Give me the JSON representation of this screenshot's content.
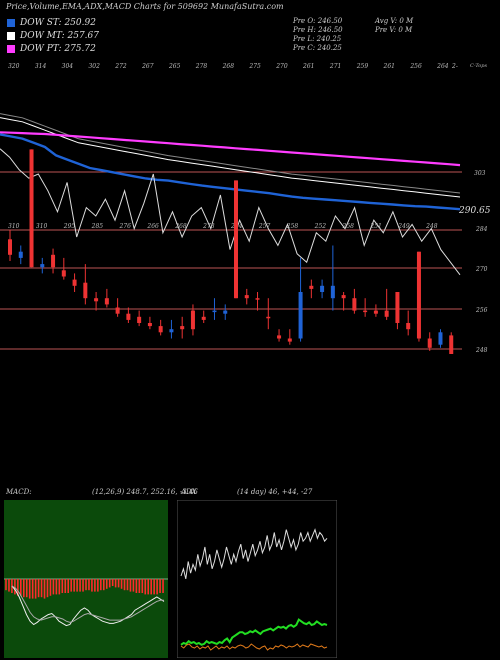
{
  "header": {
    "title": "Price,Volume,EMA,ADX,MACD Charts for 509692  MunafaSutra.com",
    "ema": [
      {
        "label": "DOW ST: 250.92",
        "color": "#1f63d6"
      },
      {
        "label": "DOW MT: 257.67",
        "color": "#ffffff"
      },
      {
        "label": "DOW PT: 275.72",
        "color": "#ff3cff"
      }
    ],
    "ohlc": [
      "Pre  O: 246.50",
      "Pre  H: 246.50",
      "Pre  L: 240.25",
      "Pre  C: 240.25"
    ],
    "volume": [
      "Avg V: 0  M",
      "Pre  V: 0  M"
    ]
  },
  "chart_data": [
    {
      "type": "line",
      "name": "price-ema",
      "x_tick_labels": [
        "320",
        "314",
        "304",
        "302",
        "272",
        "267",
        "265",
        "278",
        "268",
        "275",
        "270",
        "261",
        "271",
        "259",
        "261",
        "256",
        "264"
      ],
      "x_tick_labels_last": "2-",
      "x_label_right": "C-Tops",
      "y_labels": [
        "303",
        "290.65"
      ],
      "close_approx": [
        306,
        304,
        301,
        299,
        300,
        296,
        291,
        298,
        285,
        292,
        290,
        294,
        289,
        296,
        287,
        293,
        300,
        286,
        291,
        285,
        290,
        292,
        287,
        295,
        282,
        289,
        284,
        292,
        287,
        283,
        288,
        281,
        279,
        286,
        284,
        290,
        287,
        292,
        283,
        289,
        286,
        291,
        285,
        288,
        284,
        287,
        282,
        279,
        276
      ],
      "ema_st": [
        308,
        307.5,
        307,
        306,
        305,
        303,
        302,
        301,
        300,
        299.5,
        299,
        298.5,
        298,
        297.5,
        297.2,
        297,
        296.6,
        296.2,
        295.8,
        295.5,
        295.2,
        294.9,
        294.6,
        294.3,
        294,
        293.6,
        293.2,
        292.9,
        292.7,
        292.5,
        292.3,
        292.1,
        291.9,
        291.7,
        291.5,
        291.3,
        291.1,
        290.9,
        290.8,
        290.6,
        290.4,
        290.2
      ],
      "ema_mt": [
        312,
        311.5,
        311,
        310,
        309,
        308,
        307,
        306,
        305.5,
        305,
        304.5,
        304,
        303.5,
        303,
        302.5,
        302,
        301.6,
        301.2,
        300.8,
        300.4,
        300,
        299.6,
        299.2,
        298.8,
        298.4,
        298,
        297.6,
        297.3,
        297,
        296.7,
        296.4,
        296.1,
        295.8,
        295.5,
        295.2,
        294.9,
        294.6,
        294.3,
        294,
        293.7,
        293.4,
        293.1
      ],
      "ema_pt": [
        308.5,
        308.4,
        308.3,
        308.2,
        308.1,
        307.9,
        307.7,
        307.5,
        307.3,
        307.1,
        306.9,
        306.7,
        306.5,
        306.3,
        306.1,
        305.9,
        305.7,
        305.5,
        305.3,
        305.1,
        304.9,
        304.7,
        304.5,
        304.3,
        304.1,
        303.9,
        303.7,
        303.5,
        303.3,
        303.1,
        302.9,
        302.7,
        302.5,
        302.3,
        302.1,
        301.9,
        301.7,
        301.5,
        301.3,
        301.1,
        300.9,
        300.7
      ]
    },
    {
      "type": "candlestick",
      "name": "daily-candles",
      "x_tick_labels": [
        "310",
        "310",
        "295",
        "285",
        "276",
        "266",
        "268",
        "278",
        "274",
        "257",
        "258",
        "252",
        "258",
        "251",
        "249",
        "248"
      ],
      "y_labels": [
        "284",
        "270",
        "256",
        "248"
      ],
      "candles": [
        {
          "o": 281,
          "h": 284,
          "l": 274,
          "c": 276,
          "up": false
        },
        {
          "o": 277,
          "h": 279,
          "l": 273,
          "c": 275,
          "up": true
        },
        {
          "o": 310,
          "h": 310,
          "l": 272,
          "c": 272,
          "up": false
        },
        {
          "o": 272,
          "h": 275,
          "l": 270,
          "c": 273,
          "up": true
        },
        {
          "o": 276,
          "h": 278,
          "l": 270,
          "c": 272,
          "up": false
        },
        {
          "o": 271,
          "h": 275,
          "l": 268,
          "c": 269,
          "up": false
        },
        {
          "o": 268,
          "h": 270,
          "l": 264,
          "c": 266,
          "up": false
        },
        {
          "o": 267,
          "h": 273,
          "l": 260,
          "c": 262,
          "up": false
        },
        {
          "o": 262,
          "h": 264,
          "l": 258,
          "c": 261,
          "up": false
        },
        {
          "o": 262,
          "h": 265,
          "l": 259,
          "c": 260,
          "up": false
        },
        {
          "o": 259,
          "h": 262,
          "l": 256,
          "c": 257,
          "up": false
        },
        {
          "o": 257,
          "h": 259,
          "l": 254,
          "c": 255,
          "up": false
        },
        {
          "o": 256,
          "h": 258,
          "l": 253,
          "c": 254,
          "up": false
        },
        {
          "o": 254,
          "h": 256,
          "l": 252,
          "c": 253,
          "up": false
        },
        {
          "o": 253,
          "h": 255,
          "l": 250,
          "c": 251,
          "up": false
        },
        {
          "o": 251,
          "h": 255,
          "l": 249,
          "c": 252,
          "up": true
        },
        {
          "o": 253,
          "h": 256,
          "l": 249,
          "c": 252,
          "up": false
        },
        {
          "o": 252,
          "h": 260,
          "l": 250,
          "c": 258,
          "up": false
        },
        {
          "o": 256,
          "h": 258,
          "l": 254,
          "c": 255,
          "up": false
        },
        {
          "o": 258,
          "h": 262,
          "l": 255,
          "c": 258,
          "up": true
        },
        {
          "o": 258,
          "h": 260,
          "l": 255,
          "c": 257,
          "up": true
        },
        {
          "o": 300,
          "h": 300,
          "l": 262,
          "c": 262,
          "up": false
        },
        {
          "o": 263,
          "h": 265,
          "l": 260,
          "c": 262,
          "up": false
        },
        {
          "o": 262,
          "h": 264,
          "l": 258,
          "c": 262,
          "up": false
        },
        {
          "o": 256,
          "h": 262,
          "l": 252,
          "c": 256,
          "up": false
        },
        {
          "o": 250,
          "h": 252,
          "l": 248,
          "c": 249,
          "up": false
        },
        {
          "o": 249,
          "h": 252,
          "l": 247,
          "c": 248,
          "up": false
        },
        {
          "o": 264,
          "h": 275,
          "l": 248,
          "c": 249,
          "up": true
        },
        {
          "o": 265,
          "h": 268,
          "l": 262,
          "c": 266,
          "up": false
        },
        {
          "o": 266,
          "h": 268,
          "l": 262,
          "c": 264,
          "up": true
        },
        {
          "o": 266,
          "h": 279,
          "l": 258,
          "c": 262,
          "up": true
        },
        {
          "o": 262,
          "h": 264,
          "l": 258,
          "c": 263,
          "up": false
        },
        {
          "o": 262,
          "h": 265,
          "l": 257,
          "c": 258,
          "up": false
        },
        {
          "o": 258,
          "h": 262,
          "l": 256,
          "c": 258,
          "up": false
        },
        {
          "o": 258,
          "h": 260,
          "l": 256,
          "c": 257,
          "up": false
        },
        {
          "o": 258,
          "h": 265,
          "l": 255,
          "c": 256,
          "up": false
        },
        {
          "o": 264,
          "h": 264,
          "l": 252,
          "c": 254,
          "up": false
        },
        {
          "o": 254,
          "h": 258,
          "l": 250,
          "c": 252,
          "up": false
        },
        {
          "o": 277,
          "h": 277,
          "l": 248,
          "c": 249,
          "up": false
        },
        {
          "o": 249,
          "h": 251,
          "l": 245,
          "c": 246,
          "up": false
        },
        {
          "o": 251,
          "h": 252,
          "l": 246,
          "c": 247,
          "up": true
        },
        {
          "o": 250,
          "h": 251,
          "l": 244,
          "c": 244,
          "up": false
        }
      ]
    },
    {
      "type": "bar",
      "name": "macd",
      "header": "MACD:",
      "params": "(12,26,9) 248.7,  252.16,  -3.46",
      "histogram": [
        -8,
        -9,
        -10,
        -11,
        -12,
        -12,
        -13,
        -13,
        -14,
        -14,
        -14,
        -13,
        -13,
        -14,
        -13,
        -12,
        -11,
        -11,
        -11,
        -10,
        -10,
        -10,
        -9,
        -9,
        -9,
        -9,
        -9,
        -8,
        -8,
        -9,
        -9,
        -9,
        -8,
        -8,
        -7,
        -6,
        -5,
        -6,
        -6,
        -7,
        -8,
        -8,
        -9,
        -9,
        -10,
        -10,
        -10,
        -11,
        -11,
        -11,
        -11,
        -11,
        -10,
        -10
      ],
      "macd_line": [
        0,
        -4,
        -10,
        -18,
        -26,
        -32,
        -35,
        -33,
        -30,
        -28,
        -26,
        -25,
        -28,
        -32,
        -34,
        -36,
        -35,
        -30,
        -26,
        -22,
        -20,
        -22,
        -26,
        -28,
        -30,
        -32,
        -33,
        -34,
        -34,
        -33,
        -32,
        -30,
        -28,
        -26,
        -22,
        -20,
        -18,
        -16,
        -14,
        -12,
        -10,
        -12,
        -14
      ],
      "signal_line": [
        0,
        -2,
        -6,
        -12,
        -18,
        -24,
        -28,
        -30,
        -31,
        -30,
        -29,
        -28,
        -28,
        -29,
        -30,
        -32,
        -33,
        -32,
        -30,
        -28,
        -26,
        -25,
        -26,
        -27,
        -28,
        -29,
        -30,
        -31,
        -31,
        -31,
        -31,
        -30,
        -29,
        -28,
        -26,
        -24,
        -22,
        -20,
        -18,
        -16,
        -14,
        -13,
        -13
      ]
    },
    {
      "type": "line",
      "name": "adx",
      "header": "ADX",
      "params": "(14 day) 46,  +44,  -27",
      "plus_di": [
        40,
        45,
        38,
        50,
        42,
        48,
        44,
        55,
        47,
        52,
        60,
        48,
        55,
        45,
        50,
        58,
        52,
        46,
        52,
        60,
        54,
        48,
        55,
        50,
        57,
        62,
        52,
        58,
        50,
        56,
        62,
        54,
        58,
        64,
        56,
        60,
        68,
        58,
        62,
        70,
        60,
        65,
        58,
        64,
        72,
        66,
        60,
        65,
        58,
        62,
        70,
        64,
        66,
        70,
        64,
        68,
        72,
        66,
        70,
        68,
        64,
        66
      ],
      "minus_di": [
        8,
        10,
        9,
        12,
        10,
        11,
        9,
        10,
        8,
        9,
        12,
        10,
        11,
        10,
        9,
        11,
        10,
        13,
        15,
        11,
        16,
        18,
        20,
        22,
        22,
        20,
        21,
        23,
        22,
        24,
        22,
        20,
        23,
        24,
        25,
        26,
        24,
        26,
        28,
        27,
        28,
        26,
        29,
        30,
        28,
        30,
        36,
        34,
        32,
        31,
        33,
        30,
        31,
        34,
        32,
        30,
        31,
        30
      ],
      "adx_line": [
        12,
        10,
        13,
        14,
        11,
        10,
        12,
        9,
        11,
        10,
        12,
        8,
        10,
        12,
        9,
        11,
        10,
        12,
        9,
        11,
        10,
        12,
        13,
        12,
        10,
        11,
        14,
        12,
        10,
        9,
        11,
        12,
        8,
        10,
        9,
        12,
        11,
        13,
        12,
        10,
        12,
        11,
        12,
        14,
        11,
        13,
        12,
        11,
        14,
        13,
        12,
        11,
        12,
        10,
        11
      ]
    }
  ]
}
